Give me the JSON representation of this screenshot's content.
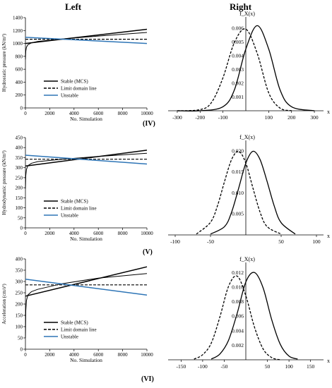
{
  "headers": {
    "left": "Left",
    "right": "Right"
  },
  "chart_data": [
    {
      "type": "line",
      "side": "left",
      "ylabel": "Hydrostatic pressure (kN/m²)",
      "xlabel": "No. Simulation",
      "xlim": [
        0,
        10000
      ],
      "ylim": [
        0,
        1400
      ],
      "xticks": [
        0,
        2000,
        4000,
        6000,
        8000,
        10000
      ],
      "yticks": [
        0,
        200,
        400,
        600,
        800,
        1000,
        1200,
        1400
      ],
      "legend": [
        "Stable (MCS)",
        "Limit domain line",
        "Unstable"
      ],
      "legend_placement": "lower-left",
      "series": [
        {
          "name": "Stable (MCS)",
          "color": "#000000",
          "style": "solid",
          "width": 1.5,
          "x": [
            0,
            10000
          ],
          "y": [
            1000,
            1220
          ]
        },
        {
          "name": "Stable (MCS)",
          "color": "#000000",
          "style": "solid",
          "width": 1,
          "x": [
            0,
            30,
            80,
            200,
            500,
            1000,
            3000,
            6000,
            10000
          ],
          "y": [
            750,
            880,
            940,
            980,
            1010,
            1030,
            1070,
            1115,
            1170
          ]
        },
        {
          "name": "Limit domain line",
          "color": "#000000",
          "style": "dashed",
          "width": 1.2,
          "x": [
            0,
            10000
          ],
          "y": [
            1065,
            1065
          ]
        },
        {
          "name": "Unstable",
          "color": "#2e75b6",
          "style": "solid",
          "width": 1.5,
          "x": [
            0,
            10000
          ],
          "y": [
            1095,
            1000
          ]
        }
      ]
    },
    {
      "type": "line",
      "side": "right",
      "title": "f_X(x)",
      "xlabel": "x",
      "xlim": [
        -340,
        340
      ],
      "ylim": [
        0,
        0.0065
      ],
      "xticks": [
        -300,
        -200,
        -100,
        100,
        200,
        300
      ],
      "yticks": [
        0.001,
        0.002,
        0.003,
        0.004,
        0.005,
        0.006
      ],
      "ytick_labels": [
        "0.001",
        "0.002",
        "0.003",
        "0.004",
        "0.005",
        "0.006"
      ],
      "series": [
        {
          "color": "#000000",
          "style": "solid",
          "x": [
            -300,
            -200,
            -100,
            -50,
            0,
            50,
            100,
            150,
            200,
            300
          ],
          "y": [
            0.0,
            0.0,
            0.00029,
            0.00151,
            0.00448,
            0.00617,
            0.00448,
            0.00151,
            0.00029,
            0.0
          ]
        },
        {
          "color": "#000000",
          "style": "dashed",
          "x": [
            -300,
            -200,
            -150,
            -100,
            -50,
            0,
            50,
            100,
            150,
            200
          ],
          "y": [
            0.0,
            8e-05,
            0.00061,
            0.00239,
            0.00495,
            0.00592,
            0.00415,
            0.0013,
            0.00019,
            1e-05
          ]
        }
      ]
    },
    {
      "type": "line",
      "side": "left",
      "ylabel": "Hydrodynamic pressure (kN/m²)",
      "xlabel": "No. Simulation",
      "xlim": [
        0,
        10000
      ],
      "ylim": [
        0,
        450
      ],
      "xticks": [
        0,
        2000,
        4000,
        6000,
        8000,
        10000
      ],
      "yticks": [
        0,
        50,
        100,
        150,
        200,
        250,
        300,
        350,
        400,
        450
      ],
      "legend": [
        "Stable (MCS)",
        "Limit domain line",
        "Unstable"
      ],
      "legend_placement": "lower-left",
      "series": [
        {
          "name": "Stable (MCS)",
          "color": "#000000",
          "style": "solid",
          "width": 1.5,
          "x": [
            0,
            10000
          ],
          "y": [
            308,
            387
          ]
        },
        {
          "name": "Stable (MCS)",
          "color": "#000000",
          "style": "solid",
          "width": 1,
          "x": [
            0,
            30,
            80,
            200,
            500,
            1000,
            3000,
            6000,
            10000
          ],
          "y": [
            195,
            260,
            290,
            310,
            322,
            330,
            342,
            356,
            372
          ]
        },
        {
          "name": "Limit domain line",
          "color": "#000000",
          "style": "dashed",
          "width": 1.2,
          "x": [
            0,
            10000
          ],
          "y": [
            342,
            342
          ]
        },
        {
          "name": "Unstable",
          "color": "#2e75b6",
          "style": "solid",
          "width": 1.5,
          "x": [
            0,
            10000
          ],
          "y": [
            362,
            318
          ]
        }
      ]
    },
    {
      "type": "line",
      "side": "right",
      "title": "f_X(x)",
      "xlabel": "x",
      "xlim": [
        -110,
        110
      ],
      "ylim": [
        0,
        0.0215
      ],
      "xticks": [
        -100,
        -50,
        50,
        100
      ],
      "yticks": [
        0.005,
        0.01,
        0.015,
        0.02
      ],
      "ytick_labels": [
        "0.005",
        "0.010",
        "0.015",
        "0.020"
      ],
      "series": [
        {
          "color": "#000000",
          "style": "solid",
          "x": [
            -50,
            -30,
            -20,
            -10,
            0,
            10,
            20,
            30,
            40,
            50,
            70
          ],
          "y": [
            0.0002,
            0.002,
            0.0055,
            0.0112,
            0.0171,
            0.0199,
            0.018,
            0.0128,
            0.007,
            0.0029,
            0.0002
          ]
        },
        {
          "color": "#000000",
          "style": "dashed",
          "x": [
            -70,
            -50,
            -40,
            -30,
            -20,
            -10,
            0,
            10,
            20,
            30,
            50
          ],
          "y": [
            0.0002,
            0.003,
            0.007,
            0.0128,
            0.018,
            0.0199,
            0.0171,
            0.0112,
            0.0055,
            0.002,
            0.0002
          ]
        }
      ]
    },
    {
      "type": "line",
      "side": "left",
      "ylabel": "Acceleration (cm/s²)",
      "xlabel": "No. Simulation",
      "xlim": [
        0,
        10000
      ],
      "ylim": [
        0,
        400
      ],
      "xticks": [
        0,
        2000,
        4000,
        6000,
        8000,
        10000
      ],
      "yticks": [
        0,
        50,
        100,
        150,
        200,
        250,
        300,
        350,
        400
      ],
      "legend": [
        "Stable (MCS)",
        "Limit domain line",
        "Unstable"
      ],
      "legend_placement": "lower-left",
      "series": [
        {
          "name": "Stable (MCS)",
          "color": "#000000",
          "style": "solid",
          "width": 1.5,
          "x": [
            0,
            10000
          ],
          "y": [
            235,
            365
          ]
        },
        {
          "name": "Stable (MCS)",
          "color": "#000000",
          "style": "solid",
          "width": 1,
          "x": [
            0,
            30,
            80,
            200,
            500,
            1000,
            3000,
            6000,
            10000
          ],
          "y": [
            50,
            170,
            215,
            240,
            255,
            265,
            290,
            315,
            335
          ]
        },
        {
          "name": "Limit domain line",
          "color": "#000000",
          "style": "dashed",
          "width": 1.2,
          "x": [
            0,
            10000
          ],
          "y": [
            285,
            285
          ]
        },
        {
          "name": "Unstable",
          "color": "#2e75b6",
          "style": "solid",
          "width": 1.5,
          "x": [
            0,
            10000
          ],
          "y": [
            310,
            240
          ]
        }
      ]
    },
    {
      "type": "line",
      "side": "right",
      "title": "f_X(x)",
      "xlabel": "x",
      "xlim": [
        -180,
        180
      ],
      "ylim": [
        0,
        0.0128
      ],
      "xticks": [
        -150,
        -100,
        -50,
        50,
        100,
        150
      ],
      "yticks": [
        0.002,
        0.004,
        0.006,
        0.008,
        0.01,
        0.012
      ],
      "ytick_labels": [
        "0.002",
        "0.004",
        "0.006",
        "0.008",
        "0.010",
        "0.012"
      ],
      "series": [
        {
          "color": "#000000",
          "style": "solid",
          "x": [
            -80,
            -60,
            -40,
            -20,
            0,
            20,
            40,
            60,
            80,
            100,
            120
          ],
          "y": [
            0.0001,
            0.0008,
            0.0027,
            0.0064,
            0.0107,
            0.012,
            0.0099,
            0.0055,
            0.0021,
            0.0005,
            0.0001
          ]
        },
        {
          "color": "#000000",
          "style": "dashed",
          "x": [
            -120,
            -100,
            -80,
            -60,
            -40,
            -20,
            0,
            20,
            40,
            60,
            80
          ],
          "y": [
            0.0001,
            0.0007,
            0.0023,
            0.0059,
            0.0101,
            0.0115,
            0.0088,
            0.0045,
            0.0015,
            0.0003,
            0.0
          ]
        }
      ]
    }
  ],
  "row_labels": [
    "(IV)",
    "(V)",
    "(VI)"
  ]
}
